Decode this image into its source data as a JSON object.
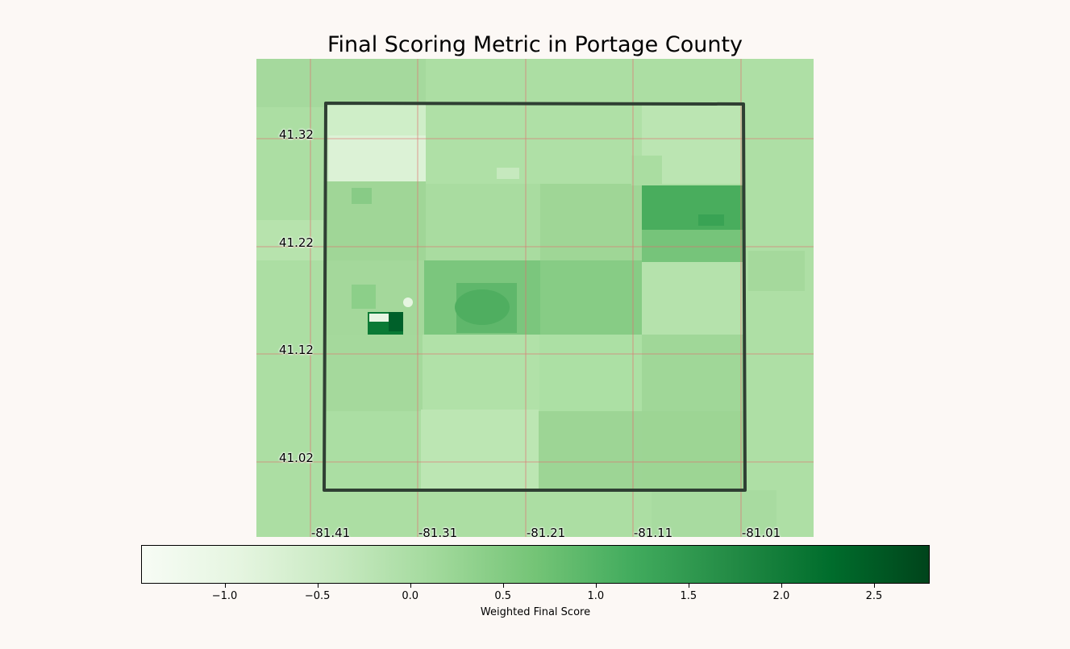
{
  "title": "Final Scoring Metric in Portage County",
  "map": {
    "latitude_labels": [
      "41.32",
      "41.22",
      "41.12",
      "41.02"
    ],
    "longitude_labels": [
      "-81.41",
      "-81.31",
      "-81.21",
      "-81.11",
      "-81.01"
    ],
    "gridline_color": "#e07070",
    "boundary_color": "#2f3f33"
  },
  "colorbar": {
    "label": "Weighted Final Score",
    "colormap": "Greens",
    "range": [
      -1.45,
      2.8
    ],
    "ticks": [
      "−1.0",
      "−0.5",
      "0.0",
      "0.5",
      "1.0",
      "1.5",
      "2.0",
      "2.5"
    ],
    "tick_values": [
      -1.0,
      -0.5,
      0.0,
      0.5,
      1.0,
      1.5,
      2.0,
      2.5
    ],
    "colors": [
      "#f7fcf5",
      "#e5f5e0",
      "#c7e9c0",
      "#a1d99b",
      "#74c476",
      "#41ab5d",
      "#238b45",
      "#006d2c",
      "#00441b"
    ]
  }
}
